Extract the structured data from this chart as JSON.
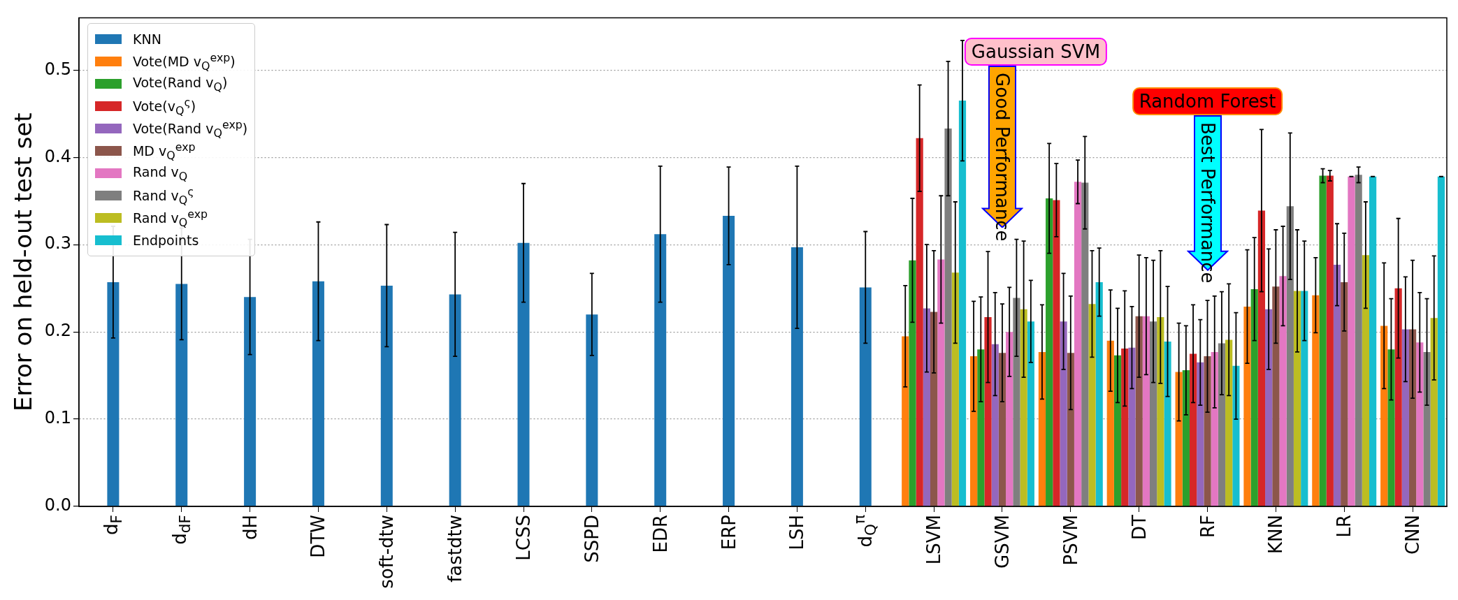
{
  "chart_data": {
    "type": "bar",
    "ylabel": "Error on held-out test set",
    "categories": [
      "d$_{F}$",
      "d$_{dF}$",
      "dH",
      "DTW",
      "soft-dtw",
      "fastdtw",
      "LCSS",
      "SSPD",
      "EDR",
      "ERP",
      "LSH",
      "d$_{Q}$$^{π}$",
      "LSVM",
      "GSVM",
      "PSVM",
      "DT",
      "RF",
      "KNN",
      "LR",
      "CNN"
    ],
    "series": [
      {
        "name": "KNN",
        "color": "#1f77b4",
        "values": [
          0.257,
          0.255,
          0.24,
          0.258,
          0.253,
          0.243,
          0.302,
          0.22,
          0.312,
          0.333,
          0.297,
          0.251,
          null,
          null,
          null,
          null,
          null,
          null,
          null,
          null
        ],
        "errors": [
          0.064,
          0.064,
          0.066,
          0.068,
          0.07,
          0.071,
          0.068,
          0.047,
          0.078,
          0.056,
          0.093,
          0.064,
          null,
          null,
          null,
          null,
          null,
          null,
          null,
          null
        ]
      },
      {
        "name": "Vote(MD v$_{Q}$$^{exp}$)",
        "color": "#ff7f0e",
        "values": [
          null,
          null,
          null,
          null,
          null,
          null,
          null,
          null,
          null,
          null,
          null,
          null,
          0.195,
          0.172,
          0.177,
          0.19,
          0.154,
          0.229,
          0.242,
          0.207
        ],
        "errors": [
          null,
          null,
          null,
          null,
          null,
          null,
          null,
          null,
          null,
          null,
          null,
          null,
          0.058,
          0.063,
          0.054,
          0.058,
          0.056,
          0.065,
          0.043,
          0.072
        ]
      },
      {
        "name": "Vote(Rand v$_{Q}$)",
        "color": "#2ca02c",
        "values": [
          null,
          null,
          null,
          null,
          null,
          null,
          null,
          null,
          null,
          null,
          null,
          null,
          0.282,
          0.18,
          0.353,
          0.173,
          0.156,
          0.249,
          0.379,
          0.18
        ],
        "errors": [
          null,
          null,
          null,
          null,
          null,
          null,
          null,
          null,
          null,
          null,
          null,
          null,
          0.071,
          0.06,
          0.063,
          0.054,
          0.051,
          0.059,
          0.008,
          0.058
        ]
      },
      {
        "name": "Vote(v$_{Q}$$^{ς}$)",
        "color": "#d62728",
        "values": [
          null,
          null,
          null,
          null,
          null,
          null,
          null,
          null,
          null,
          null,
          null,
          null,
          0.422,
          0.217,
          0.351,
          0.181,
          0.175,
          0.339,
          0.379,
          0.25
        ],
        "errors": [
          null,
          null,
          null,
          null,
          null,
          null,
          null,
          null,
          null,
          null,
          null,
          null,
          0.061,
          0.075,
          0.042,
          0.066,
          0.056,
          0.093,
          0.006,
          0.08
        ]
      },
      {
        "name": "Vote(Rand v$_{Q}$$^{exp}$)",
        "color": "#9467bd",
        "values": [
          null,
          null,
          null,
          null,
          null,
          null,
          null,
          null,
          null,
          null,
          null,
          null,
          0.227,
          0.186,
          0.212,
          0.182,
          0.165,
          0.226,
          0.277,
          0.203
        ],
        "errors": [
          null,
          null,
          null,
          null,
          null,
          null,
          null,
          null,
          null,
          null,
          null,
          null,
          0.073,
          0.059,
          0.055,
          0.047,
          0.049,
          0.069,
          0.047,
          0.06
        ]
      },
      {
        "name": "MD v$_{Q}$$^{exp}$",
        "color": "#8c564b",
        "values": [
          null,
          null,
          null,
          null,
          null,
          null,
          null,
          null,
          null,
          null,
          null,
          null,
          0.223,
          0.176,
          0.176,
          0.218,
          0.172,
          0.252,
          0.257,
          0.203
        ],
        "errors": [
          null,
          null,
          null,
          null,
          null,
          null,
          null,
          null,
          null,
          null,
          null,
          null,
          0.07,
          0.056,
          0.065,
          0.07,
          0.064,
          0.065,
          0.056,
          0.079
        ]
      },
      {
        "name": "Rand v$_{Q}$",
        "color": "#e377c2",
        "values": [
          null,
          null,
          null,
          null,
          null,
          null,
          null,
          null,
          null,
          null,
          null,
          null,
          0.283,
          0.2,
          0.372,
          0.218,
          0.177,
          0.264,
          0.378,
          0.188
        ],
        "errors": [
          null,
          null,
          null,
          null,
          null,
          null,
          null,
          null,
          null,
          null,
          null,
          null,
          0.073,
          0.051,
          0.025,
          0.067,
          0.064,
          0.057,
          0,
          0.057
        ]
      },
      {
        "name": "Rand v$_{Q}$$^{ς}$",
        "color": "#7f7f7f",
        "values": [
          null,
          null,
          null,
          null,
          null,
          null,
          null,
          null,
          null,
          null,
          null,
          null,
          0.433,
          0.239,
          0.371,
          0.212,
          0.187,
          0.344,
          0.38,
          0.177
        ],
        "errors": [
          null,
          null,
          null,
          null,
          null,
          null,
          null,
          null,
          null,
          null,
          null,
          null,
          0.077,
          0.067,
          0.053,
          0.07,
          0.059,
          0.084,
          0.009,
          0.061
        ]
      },
      {
        "name": "Rand v$_{Q}$$^{exp}$",
        "color": "#bcbd22",
        "values": [
          null,
          null,
          null,
          null,
          null,
          null,
          null,
          null,
          null,
          null,
          null,
          null,
          0.268,
          0.226,
          0.232,
          0.217,
          0.191,
          0.247,
          0.288,
          0.216
        ],
        "errors": [
          null,
          null,
          null,
          null,
          null,
          null,
          null,
          null,
          null,
          null,
          null,
          null,
          0.081,
          0.078,
          0.061,
          0.076,
          0.064,
          0.07,
          0.061,
          0.071
        ]
      },
      {
        "name": "Endpoints",
        "color": "#17becf",
        "values": [
          null,
          null,
          null,
          null,
          null,
          null,
          null,
          null,
          null,
          null,
          null,
          null,
          0.465,
          0.212,
          0.257,
          0.189,
          0.161,
          0.247,
          0.378,
          0.378
        ],
        "errors": [
          null,
          null,
          null,
          null,
          null,
          null,
          null,
          null,
          null,
          null,
          null,
          null,
          0.069,
          0.047,
          0.039,
          0.063,
          0.061,
          0.057,
          0,
          0
        ]
      }
    ],
    "ylim": [
      0,
      0.56
    ],
    "yticks": [
      {
        "value": 0,
        "label": "0.0"
      },
      0.1,
      0.2,
      0.3,
      0.4,
      0.5
    ],
    "grid": "y",
    "legend": "top left",
    "annotations": [
      "Gaussian SVM",
      "Good Performance",
      "Random Forest",
      "Best Performance"
    ]
  }
}
